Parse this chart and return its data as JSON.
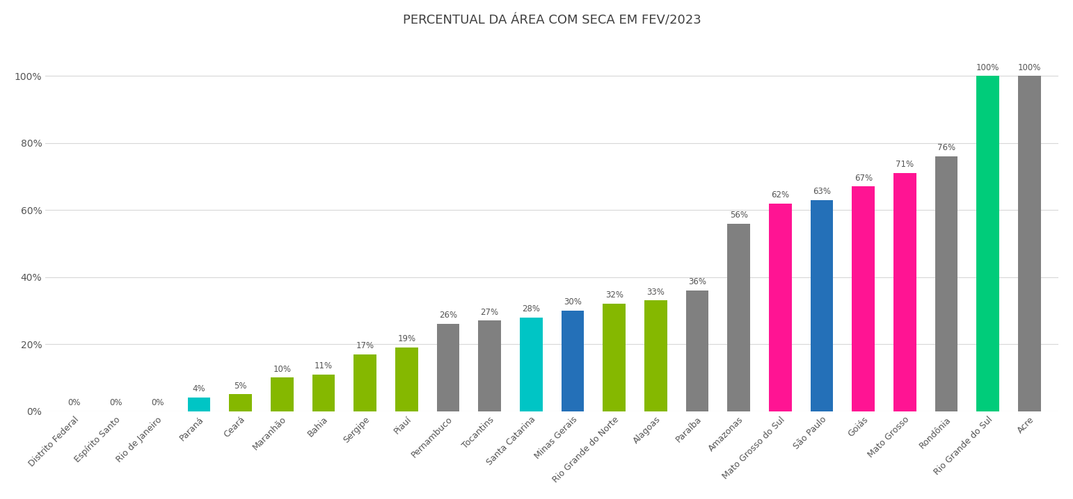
{
  "title": "PERCENTUAL DA ÁREA COM SECA EM FEV/2023",
  "categories": [
    "Distrito Federal",
    "Espírito Santo",
    "Rio de Janeiro",
    "Paraná",
    "Ceará",
    "Maranhão",
    "Bahia",
    "Sergipe",
    "Piauí",
    "Pernambuco",
    "Tocantins",
    "Santa Catarina",
    "Minas Gerais",
    "Rio Grande do Norte",
    "Alagoas",
    "Paraíba",
    "Amazonas",
    "Mato Grosso do Sul",
    "São Paulo",
    "Goiás",
    "Mato Grosso",
    "Rondônia",
    "Rio Grande do Sul",
    "Acre"
  ],
  "values": [
    0,
    0,
    0,
    4,
    5,
    10,
    11,
    17,
    19,
    26,
    27,
    28,
    30,
    32,
    33,
    36,
    56,
    62,
    63,
    67,
    71,
    76,
    100,
    100
  ],
  "colors": [
    "#808080",
    "#808080",
    "#808080",
    "#00C5C5",
    "#85B800",
    "#85B800",
    "#85B800",
    "#85B800",
    "#85B800",
    "#808080",
    "#808080",
    "#00C5C5",
    "#2470B8",
    "#85B800",
    "#85B800",
    "#808080",
    "#808080",
    "#FF1493",
    "#2470B8",
    "#FF1493",
    "#FF1493",
    "#808080",
    "#00CC7A",
    "#808080"
  ],
  "ylim": [
    0,
    112
  ],
  "yticks": [
    0,
    20,
    40,
    60,
    80,
    100
  ],
  "ytick_labels": [
    "0%",
    "20%",
    "40%",
    "60%",
    "80%",
    "100%"
  ],
  "background_color": "#ffffff",
  "grid_color": "#d8d8d8",
  "bar_width": 0.55,
  "title_fontsize": 13,
  "label_fontsize": 8.5,
  "xtick_fontsize": 9,
  "ytick_fontsize": 10
}
